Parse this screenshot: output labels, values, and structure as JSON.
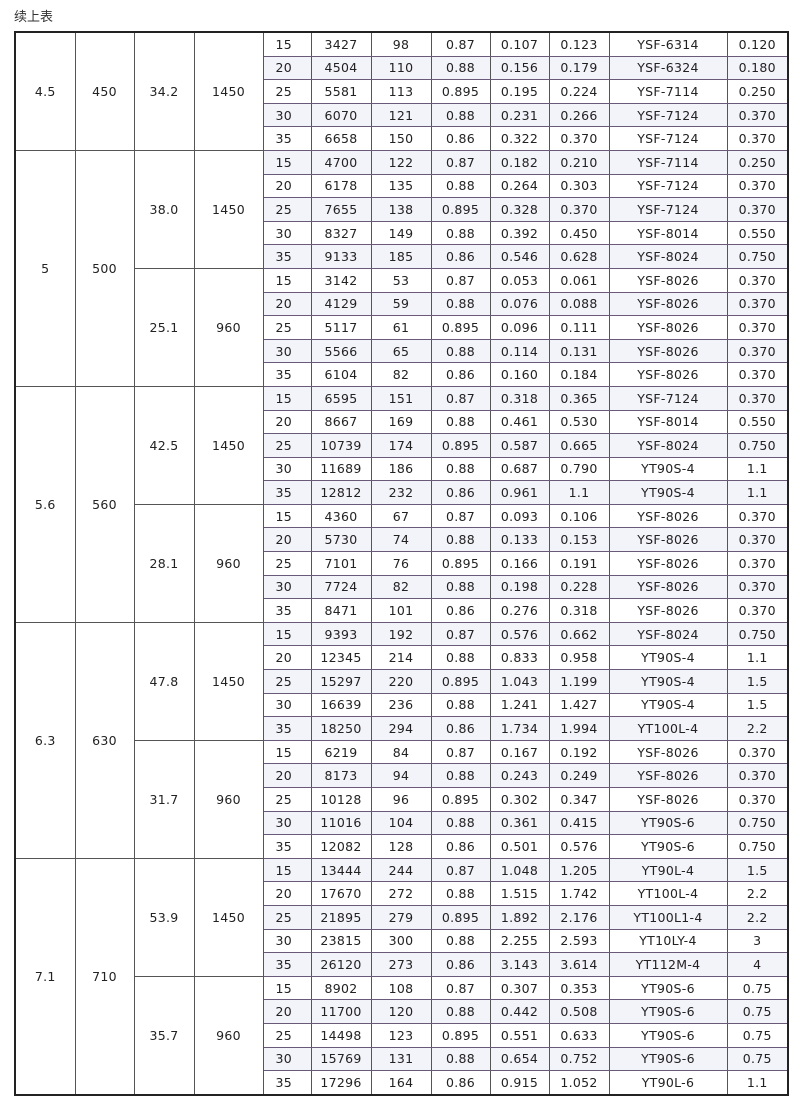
{
  "caption": "续上表",
  "groups": [
    {
      "col1": "4.5",
      "col2": "450",
      "subs": [
        {
          "col3": "34.2",
          "col4": "1450",
          "rows": [
            [
              "15",
              "3427",
              "98",
              "0.87",
              "0.107",
              "0.123",
              "YSF-6314",
              "0.120"
            ],
            [
              "20",
              "4504",
              "110",
              "0.88",
              "0.156",
              "0.179",
              "YSF-6324",
              "0.180"
            ],
            [
              "25",
              "5581",
              "113",
              "0.895",
              "0.195",
              "0.224",
              "YSF-7114",
              "0.250"
            ],
            [
              "30",
              "6070",
              "121",
              "0.88",
              "0.231",
              "0.266",
              "YSF-7124",
              "0.370"
            ],
            [
              "35",
              "6658",
              "150",
              "0.86",
              "0.322",
              "0.370",
              "YSF-7124",
              "0.370"
            ]
          ]
        }
      ]
    },
    {
      "col1": "5",
      "col2": "500",
      "subs": [
        {
          "col3": "38.0",
          "col4": "1450",
          "rows": [
            [
              "15",
              "4700",
              "122",
              "0.87",
              "0.182",
              "0.210",
              "YSF-7114",
              "0.250"
            ],
            [
              "20",
              "6178",
              "135",
              "0.88",
              "0.264",
              "0.303",
              "YSF-7124",
              "0.370"
            ],
            [
              "25",
              "7655",
              "138",
              "0.895",
              "0.328",
              "0.370",
              "YSF-7124",
              "0.370"
            ],
            [
              "30",
              "8327",
              "149",
              "0.88",
              "0.392",
              "0.450",
              "YSF-8014",
              "0.550"
            ],
            [
              "35",
              "9133",
              "185",
              "0.86",
              "0.546",
              "0.628",
              "YSF-8024",
              "0.750"
            ]
          ]
        },
        {
          "col3": "25.1",
          "col4": "960",
          "rows": [
            [
              "15",
              "3142",
              "53",
              "0.87",
              "0.053",
              "0.061",
              "YSF-8026",
              "0.370"
            ],
            [
              "20",
              "4129",
              "59",
              "0.88",
              "0.076",
              "0.088",
              "YSF-8026",
              "0.370"
            ],
            [
              "25",
              "5117",
              "61",
              "0.895",
              "0.096",
              "0.111",
              "YSF-8026",
              "0.370"
            ],
            [
              "30",
              "5566",
              "65",
              "0.88",
              "0.114",
              "0.131",
              "YSF-8026",
              "0.370"
            ],
            [
              "35",
              "6104",
              "82",
              "0.86",
              "0.160",
              "0.184",
              "YSF-8026",
              "0.370"
            ]
          ]
        }
      ]
    },
    {
      "col1": "5.6",
      "col2": "560",
      "subs": [
        {
          "col3": "42.5",
          "col4": "1450",
          "rows": [
            [
              "15",
              "6595",
              "151",
              "0.87",
              "0.318",
              "0.365",
              "YSF-7124",
              "0.370"
            ],
            [
              "20",
              "8667",
              "169",
              "0.88",
              "0.461",
              "0.530",
              "YSF-8014",
              "0.550"
            ],
            [
              "25",
              "10739",
              "174",
              "0.895",
              "0.587",
              "0.665",
              "YSF-8024",
              "0.750"
            ],
            [
              "30",
              "11689",
              "186",
              "0.88",
              "0.687",
              "0.790",
              "YT90S-4",
              "1.1"
            ],
            [
              "35",
              "12812",
              "232",
              "0.86",
              "0.961",
              "1.1",
              "YT90S-4",
              "1.1"
            ]
          ]
        },
        {
          "col3": "28.1",
          "col4": "960",
          "rows": [
            [
              "15",
              "4360",
              "67",
              "0.87",
              "0.093",
              "0.106",
              "YSF-8026",
              "0.370"
            ],
            [
              "20",
              "5730",
              "74",
              "0.88",
              "0.133",
              "0.153",
              "YSF-8026",
              "0.370"
            ],
            [
              "25",
              "7101",
              "76",
              "0.895",
              "0.166",
              "0.191",
              "YSF-8026",
              "0.370"
            ],
            [
              "30",
              "7724",
              "82",
              "0.88",
              "0.198",
              "0.228",
              "YSF-8026",
              "0.370"
            ],
            [
              "35",
              "8471",
              "101",
              "0.86",
              "0.276",
              "0.318",
              "YSF-8026",
              "0.370"
            ]
          ]
        }
      ]
    },
    {
      "col1": "6.3",
      "col2": "630",
      "subs": [
        {
          "col3": "47.8",
          "col4": "1450",
          "rows": [
            [
              "15",
              "9393",
              "192",
              "0.87",
              "0.576",
              "0.662",
              "YSF-8024",
              "0.750"
            ],
            [
              "20",
              "12345",
              "214",
              "0.88",
              "0.833",
              "0.958",
              "YT90S-4",
              "1.1"
            ],
            [
              "25",
              "15297",
              "220",
              "0.895",
              "1.043",
              "1.199",
              "YT90S-4",
              "1.5"
            ],
            [
              "30",
              "16639",
              "236",
              "0.88",
              "1.241",
              "1.427",
              "YT90S-4",
              "1.5"
            ],
            [
              "35",
              "18250",
              "294",
              "0.86",
              "1.734",
              "1.994",
              "YT100L-4",
              "2.2"
            ]
          ]
        },
        {
          "col3": "31.7",
          "col4": "960",
          "rows": [
            [
              "15",
              "6219",
              "84",
              "0.87",
              "0.167",
              "0.192",
              "YSF-8026",
              "0.370"
            ],
            [
              "20",
              "8173",
              "94",
              "0.88",
              "0.243",
              "0.249",
              "YSF-8026",
              "0.370"
            ],
            [
              "25",
              "10128",
              "96",
              "0.895",
              "0.302",
              "0.347",
              "YSF-8026",
              "0.370"
            ],
            [
              "30",
              "11016",
              "104",
              "0.88",
              "0.361",
              "0.415",
              "YT90S-6",
              "0.750"
            ],
            [
              "35",
              "12082",
              "128",
              "0.86",
              "0.501",
              "0.576",
              "YT90S-6",
              "0.750"
            ]
          ]
        }
      ]
    },
    {
      "col1": "7.1",
      "col2": "710",
      "subs": [
        {
          "col3": "53.9",
          "col4": "1450",
          "rows": [
            [
              "15",
              "13444",
              "244",
              "0.87",
              "1.048",
              "1.205",
              "YT90L-4",
              "1.5"
            ],
            [
              "20",
              "17670",
              "272",
              "0.88",
              "1.515",
              "1.742",
              "YT100L-4",
              "2.2"
            ],
            [
              "25",
              "21895",
              "279",
              "0.895",
              "1.892",
              "2.176",
              "YT100L1-4",
              "2.2"
            ],
            [
              "30",
              "23815",
              "300",
              "0.88",
              "2.255",
              "2.593",
              "YT10LY-4",
              "3"
            ],
            [
              "35",
              "26120",
              "273",
              "0.86",
              "3.143",
              "3.614",
              "YT112M-4",
              "4"
            ]
          ]
        },
        {
          "col3": "35.7",
          "col4": "960",
          "rows": [
            [
              "15",
              "8902",
              "108",
              "0.87",
              "0.307",
              "0.353",
              "YT90S-6",
              "0.75"
            ],
            [
              "20",
              "11700",
              "120",
              "0.88",
              "0.442",
              "0.508",
              "YT90S-6",
              "0.75"
            ],
            [
              "25",
              "14498",
              "123",
              "0.895",
              "0.551",
              "0.633",
              "YT90S-6",
              "0.75"
            ],
            [
              "30",
              "15769",
              "131",
              "0.88",
              "0.654",
              "0.752",
              "YT90S-6",
              "0.75"
            ],
            [
              "35",
              "17296",
              "164",
              "0.86",
              "0.915",
              "1.052",
              "YT90L-6",
              "1.1"
            ]
          ]
        }
      ]
    }
  ]
}
